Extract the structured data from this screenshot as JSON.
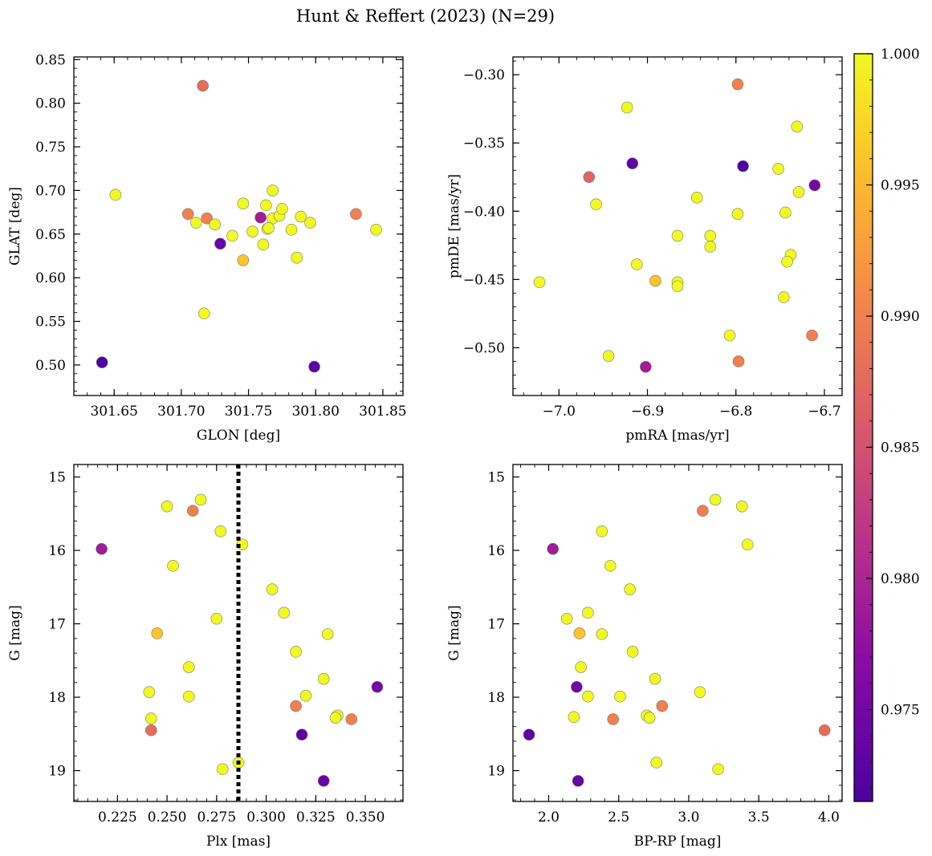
{
  "figure": {
    "title": "Hunt & Reffert (2023) (N=29)"
  },
  "colorbar": {
    "range": [
      0.9715,
      1.0
    ],
    "ticks": [
      0.975,
      0.98,
      0.985,
      0.99,
      0.995,
      1.0
    ],
    "tick_labels": [
      "0.975",
      "0.980",
      "0.985",
      "0.990",
      "0.995",
      "1.000"
    ],
    "colormap": "plasma"
  },
  "chart_data": [
    {
      "type": "scatter",
      "xlabel": "GLON [deg]",
      "ylabel": "GLAT [deg]",
      "xlim": [
        301.62,
        301.865
      ],
      "ylim": [
        0.465,
        0.853
      ],
      "y_inverted": false,
      "xticks": [
        301.65,
        301.7,
        301.75,
        301.8,
        301.85
      ],
      "xtick_labels": [
        "301.65",
        "301.70",
        "301.75",
        "301.80",
        "301.85"
      ],
      "yticks": [
        0.5,
        0.55,
        0.6,
        0.65,
        0.7,
        0.75,
        0.8,
        0.85
      ],
      "ytick_labels": [
        "0.50",
        "0.55",
        "0.60",
        "0.65",
        "0.70",
        "0.75",
        "0.80",
        "0.85"
      ],
      "points": [
        {
          "x": 301.716,
          "y": 0.82,
          "c": 0.988
        },
        {
          "x": 301.651,
          "y": 0.695,
          "c": 1.0
        },
        {
          "x": 301.705,
          "y": 0.673,
          "c": 0.99
        },
        {
          "x": 301.711,
          "y": 0.663,
          "c": 1.0
        },
        {
          "x": 301.719,
          "y": 0.668,
          "c": 0.99
        },
        {
          "x": 301.725,
          "y": 0.661,
          "c": 1.0
        },
        {
          "x": 301.729,
          "y": 0.639,
          "c": 0.974
        },
        {
          "x": 301.738,
          "y": 0.648,
          "c": 1.0
        },
        {
          "x": 301.746,
          "y": 0.685,
          "c": 1.0
        },
        {
          "x": 301.746,
          "y": 0.62,
          "c": 0.996
        },
        {
          "x": 301.753,
          "y": 0.653,
          "c": 1.0
        },
        {
          "x": 301.759,
          "y": 0.669,
          "c": 0.979
        },
        {
          "x": 301.761,
          "y": 0.638,
          "c": 1.0
        },
        {
          "x": 301.763,
          "y": 0.683,
          "c": 1.0
        },
        {
          "x": 301.764,
          "y": 0.656,
          "c": 1.0
        },
        {
          "x": 301.768,
          "y": 0.7,
          "c": 1.0
        },
        {
          "x": 301.768,
          "y": 0.668,
          "c": 1.0
        },
        {
          "x": 301.773,
          "y": 0.671,
          "c": 1.0
        },
        {
          "x": 301.775,
          "y": 0.679,
          "c": 1.0
        },
        {
          "x": 301.782,
          "y": 0.655,
          "c": 1.0
        },
        {
          "x": 301.786,
          "y": 0.623,
          "c": 1.0
        },
        {
          "x": 301.789,
          "y": 0.67,
          "c": 1.0
        },
        {
          "x": 301.796,
          "y": 0.663,
          "c": 1.0
        },
        {
          "x": 301.717,
          "y": 0.559,
          "c": 1.0
        },
        {
          "x": 301.641,
          "y": 0.503,
          "c": 0.972
        },
        {
          "x": 301.799,
          "y": 0.498,
          "c": 0.973
        },
        {
          "x": 301.83,
          "y": 0.673,
          "c": 0.99
        },
        {
          "x": 301.845,
          "y": 0.655,
          "c": 1.0
        },
        {
          "x": 301.765,
          "y": 0.657,
          "c": 1.0
        }
      ]
    },
    {
      "type": "scatter",
      "xlabel": "pmRA [mas/yr]",
      "ylabel": "pmDE [mas/yr]",
      "xlim": [
        -7.052,
        -6.68
      ],
      "ylim": [
        -0.535,
        -0.287
      ],
      "y_inverted": false,
      "xticks": [
        -7.0,
        -6.9,
        -6.8,
        -6.7
      ],
      "xtick_labels": [
        "−7.0",
        "−6.9",
        "−6.8",
        "−6.7"
      ],
      "yticks": [
        -0.5,
        -0.45,
        -0.4,
        -0.35,
        -0.3
      ],
      "ytick_labels": [
        "−0.50",
        "−0.45",
        "−0.40",
        "−0.35",
        "−0.30"
      ],
      "points": [
        {
          "x": -6.798,
          "y": -0.307,
          "c": 0.99
        },
        {
          "x": -6.923,
          "y": -0.324,
          "c": 1.0
        },
        {
          "x": -6.731,
          "y": -0.338,
          "c": 1.0
        },
        {
          "x": -6.917,
          "y": -0.365,
          "c": 0.973
        },
        {
          "x": -6.792,
          "y": -0.367,
          "c": 0.972
        },
        {
          "x": -6.966,
          "y": -0.375,
          "c": 0.987
        },
        {
          "x": -6.752,
          "y": -0.369,
          "c": 1.0
        },
        {
          "x": -6.711,
          "y": -0.381,
          "c": 0.975
        },
        {
          "x": -6.729,
          "y": -0.386,
          "c": 1.0
        },
        {
          "x": -6.844,
          "y": -0.39,
          "c": 1.0
        },
        {
          "x": -6.958,
          "y": -0.395,
          "c": 1.0
        },
        {
          "x": -6.798,
          "y": -0.402,
          "c": 1.0
        },
        {
          "x": -6.744,
          "y": -0.401,
          "c": 1.0
        },
        {
          "x": -6.866,
          "y": -0.418,
          "c": 1.0
        },
        {
          "x": -6.829,
          "y": -0.418,
          "c": 1.0
        },
        {
          "x": -6.829,
          "y": -0.426,
          "c": 1.0
        },
        {
          "x": -6.738,
          "y": -0.432,
          "c": 1.0
        },
        {
          "x": -6.742,
          "y": -0.437,
          "c": 1.0
        },
        {
          "x": -6.912,
          "y": -0.439,
          "c": 1.0
        },
        {
          "x": -6.891,
          "y": -0.451,
          "c": 0.996
        },
        {
          "x": -6.866,
          "y": -0.452,
          "c": 1.0
        },
        {
          "x": -6.866,
          "y": -0.455,
          "c": 1.0
        },
        {
          "x": -7.022,
          "y": -0.452,
          "c": 1.0
        },
        {
          "x": -6.746,
          "y": -0.463,
          "c": 1.0
        },
        {
          "x": -6.807,
          "y": -0.491,
          "c": 1.0
        },
        {
          "x": -6.714,
          "y": -0.491,
          "c": 0.99
        },
        {
          "x": -6.944,
          "y": -0.506,
          "c": 1.0
        },
        {
          "x": -6.797,
          "y": -0.51,
          "c": 0.99
        },
        {
          "x": -6.902,
          "y": -0.514,
          "c": 0.979
        }
      ]
    },
    {
      "type": "scatter",
      "xlabel": "Plx [mas]",
      "ylabel": "G [mag]",
      "xlim": [
        0.203,
        0.369
      ],
      "ylim": [
        14.83,
        19.42
      ],
      "y_inverted": true,
      "vline": 0.286,
      "xticks": [
        0.225,
        0.25,
        0.275,
        0.3,
        0.325,
        0.35
      ],
      "xtick_labels": [
        "0.225",
        "0.250",
        "0.275",
        "0.300",
        "0.325",
        "0.350"
      ],
      "yticks": [
        15,
        16,
        17,
        18,
        19
      ],
      "ytick_labels": [
        "15",
        "16",
        "17",
        "18",
        "19"
      ],
      "points": [
        {
          "x": 0.267,
          "y": 15.31,
          "c": 1.0
        },
        {
          "x": 0.25,
          "y": 15.4,
          "c": 1.0
        },
        {
          "x": 0.263,
          "y": 15.46,
          "c": 0.99
        },
        {
          "x": 0.277,
          "y": 15.74,
          "c": 1.0
        },
        {
          "x": 0.288,
          "y": 15.92,
          "c": 1.0
        },
        {
          "x": 0.217,
          "y": 15.98,
          "c": 0.979
        },
        {
          "x": 0.253,
          "y": 16.21,
          "c": 1.0
        },
        {
          "x": 0.303,
          "y": 16.53,
          "c": 1.0
        },
        {
          "x": 0.309,
          "y": 16.85,
          "c": 1.0
        },
        {
          "x": 0.275,
          "y": 16.93,
          "c": 1.0
        },
        {
          "x": 0.245,
          "y": 17.13,
          "c": 0.996
        },
        {
          "x": 0.331,
          "y": 17.14,
          "c": 1.0
        },
        {
          "x": 0.315,
          "y": 17.38,
          "c": 1.0
        },
        {
          "x": 0.261,
          "y": 17.59,
          "c": 1.0
        },
        {
          "x": 0.329,
          "y": 17.75,
          "c": 1.0
        },
        {
          "x": 0.356,
          "y": 17.86,
          "c": 0.975
        },
        {
          "x": 0.241,
          "y": 17.93,
          "c": 1.0
        },
        {
          "x": 0.261,
          "y": 17.99,
          "c": 1.0
        },
        {
          "x": 0.32,
          "y": 17.98,
          "c": 1.0
        },
        {
          "x": 0.315,
          "y": 18.12,
          "c": 0.99
        },
        {
          "x": 0.336,
          "y": 18.25,
          "c": 1.0
        },
        {
          "x": 0.335,
          "y": 18.28,
          "c": 1.0
        },
        {
          "x": 0.242,
          "y": 18.29,
          "c": 1.0
        },
        {
          "x": 0.343,
          "y": 18.3,
          "c": 0.99
        },
        {
          "x": 0.242,
          "y": 18.45,
          "c": 0.988
        },
        {
          "x": 0.318,
          "y": 18.51,
          "c": 0.973
        },
        {
          "x": 0.286,
          "y": 18.89,
          "c": 1.0
        },
        {
          "x": 0.278,
          "y": 18.98,
          "c": 1.0
        },
        {
          "x": 0.329,
          "y": 19.14,
          "c": 0.974
        }
      ]
    },
    {
      "type": "scatter",
      "xlabel": "BP-RP [mag]",
      "ylabel": "G [mag]",
      "xlim": [
        1.745,
        4.095
      ],
      "ylim": [
        14.83,
        19.42
      ],
      "y_inverted": true,
      "xticks": [
        2.0,
        2.5,
        3.0,
        3.5,
        4.0
      ],
      "xtick_labels": [
        "2.0",
        "2.5",
        "3.0",
        "3.5",
        "4.0"
      ],
      "yticks": [
        15,
        16,
        17,
        18,
        19
      ],
      "ytick_labels": [
        "15",
        "16",
        "17",
        "18",
        "19"
      ],
      "points": [
        {
          "x": 3.19,
          "y": 15.31,
          "c": 1.0
        },
        {
          "x": 3.38,
          "y": 15.4,
          "c": 1.0
        },
        {
          "x": 3.1,
          "y": 15.46,
          "c": 0.99
        },
        {
          "x": 2.38,
          "y": 15.74,
          "c": 1.0
        },
        {
          "x": 3.42,
          "y": 15.92,
          "c": 1.0
        },
        {
          "x": 2.03,
          "y": 15.98,
          "c": 0.979
        },
        {
          "x": 2.44,
          "y": 16.21,
          "c": 1.0
        },
        {
          "x": 2.58,
          "y": 16.53,
          "c": 1.0
        },
        {
          "x": 2.28,
          "y": 16.85,
          "c": 1.0
        },
        {
          "x": 2.13,
          "y": 16.93,
          "c": 1.0
        },
        {
          "x": 2.22,
          "y": 17.13,
          "c": 0.996
        },
        {
          "x": 2.38,
          "y": 17.14,
          "c": 1.0
        },
        {
          "x": 2.6,
          "y": 17.38,
          "c": 1.0
        },
        {
          "x": 2.23,
          "y": 17.59,
          "c": 1.0
        },
        {
          "x": 2.76,
          "y": 17.75,
          "c": 1.0
        },
        {
          "x": 2.2,
          "y": 17.86,
          "c": 0.975
        },
        {
          "x": 3.08,
          "y": 17.93,
          "c": 1.0
        },
        {
          "x": 2.28,
          "y": 17.99,
          "c": 1.0
        },
        {
          "x": 2.51,
          "y": 17.99,
          "c": 1.0
        },
        {
          "x": 2.81,
          "y": 18.12,
          "c": 0.99
        },
        {
          "x": 2.7,
          "y": 18.25,
          "c": 1.0
        },
        {
          "x": 2.72,
          "y": 18.28,
          "c": 1.0
        },
        {
          "x": 2.18,
          "y": 18.27,
          "c": 1.0
        },
        {
          "x": 2.46,
          "y": 18.3,
          "c": 0.99
        },
        {
          "x": 3.97,
          "y": 18.45,
          "c": 0.988
        },
        {
          "x": 1.86,
          "y": 18.51,
          "c": 0.973
        },
        {
          "x": 2.77,
          "y": 18.89,
          "c": 1.0
        },
        {
          "x": 3.21,
          "y": 18.98,
          "c": 1.0
        },
        {
          "x": 2.21,
          "y": 19.14,
          "c": 0.974
        }
      ]
    }
  ]
}
